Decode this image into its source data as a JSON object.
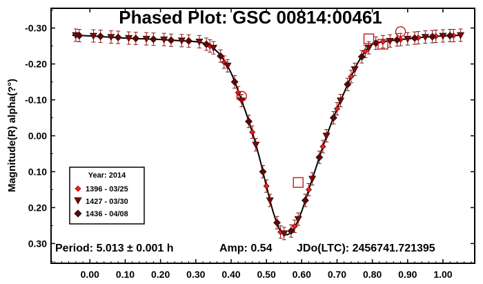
{
  "chart_data": {
    "type": "scatter",
    "title": "Phased Plot: GSC 00814:00461",
    "xlabel": "",
    "ylabel": "Magnitude(R) alpha(?°)",
    "xlim": [
      -0.11,
      1.09
    ],
    "ylim": [
      -0.355,
      0.355
    ],
    "y_inverted": true,
    "grid": false,
    "x_ticks": [
      "0.00",
      "0.10",
      "0.20",
      "0.30",
      "0.40",
      "0.50",
      "0.60",
      "0.70",
      "0.80",
      "0.90",
      "1.00"
    ],
    "y_ticks": [
      "-0.30",
      "-0.20",
      "-0.10",
      "0.00",
      "0.10",
      "0.20",
      "0.30"
    ],
    "x_tick_values": [
      0,
      0.1,
      0.2,
      0.3,
      0.4,
      0.5,
      0.6,
      0.7,
      0.8,
      0.9,
      1.0
    ],
    "y_tick_values": [
      -0.3,
      -0.2,
      -0.1,
      0,
      0.1,
      0.2,
      0.3
    ],
    "legend": {
      "title": "Year: 2014",
      "placement": "bottom-left",
      "entries": [
        {
          "label": "1396 - 03/25",
          "marker": "diamond-small"
        },
        {
          "label": "1427 - 03/30",
          "marker": "triangle-down"
        },
        {
          "label": "1436 - 04/08",
          "marker": "diamond"
        }
      ]
    },
    "annotations": {
      "period": "Period: 5.013 ± 0.001 h",
      "amp": "Amp: 0.54",
      "jdo": "JDo(LTC): 2456741.721395"
    },
    "fit_curve": {
      "x": [
        -0.05,
        0.0,
        0.05,
        0.1,
        0.15,
        0.2,
        0.25,
        0.3,
        0.33,
        0.36,
        0.38,
        0.4,
        0.42,
        0.44,
        0.46,
        0.48,
        0.5,
        0.52,
        0.54,
        0.56,
        0.58,
        0.6,
        0.62,
        0.64,
        0.66,
        0.68,
        0.7,
        0.72,
        0.74,
        0.76,
        0.78,
        0.8,
        0.83,
        0.86,
        0.9,
        0.95,
        1.0,
        1.05
      ],
      "y": [
        -0.28,
        -0.278,
        -0.275,
        -0.272,
        -0.27,
        -0.268,
        -0.265,
        -0.262,
        -0.255,
        -0.235,
        -0.21,
        -0.175,
        -0.125,
        -0.07,
        -0.01,
        0.06,
        0.14,
        0.215,
        0.265,
        0.275,
        0.255,
        0.21,
        0.15,
        0.09,
        0.03,
        -0.025,
        -0.075,
        -0.12,
        -0.165,
        -0.205,
        -0.235,
        -0.255,
        -0.262,
        -0.266,
        -0.27,
        -0.275,
        -0.278,
        -0.28
      ]
    },
    "series": [
      {
        "name": "1396 - 03/25",
        "marker": "diamond-small",
        "color": "#ff1a1a",
        "x": [
          0.34,
          0.38,
          0.42,
          0.46,
          0.5,
          0.54,
          0.58,
          0.62,
          0.66,
          0.7,
          0.74,
          0.78,
          0.83,
          0.88,
          0.93,
          0.98,
          1.03
        ],
        "y": [
          -0.25,
          -0.205,
          -0.12,
          -0.01,
          0.14,
          0.268,
          0.252,
          0.15,
          0.03,
          -0.075,
          -0.165,
          -0.235,
          -0.262,
          -0.268,
          -0.273,
          -0.277,
          -0.279
        ]
      },
      {
        "name": "1427 - 03/30",
        "marker": "triangle-down",
        "color": "#7a0a0a",
        "x": [
          -0.04,
          0.01,
          0.06,
          0.11,
          0.16,
          0.21,
          0.26,
          0.31,
          0.35,
          0.39,
          0.43,
          0.47,
          0.51,
          0.55,
          0.59,
          0.63,
          0.67,
          0.71,
          0.75,
          0.79,
          0.85,
          0.9,
          0.95,
          1.0,
          1.05
        ],
        "y": [
          -0.28,
          -0.278,
          -0.275,
          -0.272,
          -0.27,
          -0.268,
          -0.265,
          -0.262,
          -0.245,
          -0.195,
          -0.098,
          0.025,
          0.18,
          0.272,
          0.232,
          0.12,
          0.0,
          -0.098,
          -0.185,
          -0.245,
          -0.264,
          -0.27,
          -0.275,
          -0.278,
          -0.28
        ]
      },
      {
        "name": "1436 - 04/08",
        "marker": "diamond",
        "color": "#5a0808",
        "x": [
          -0.03,
          0.03,
          0.08,
          0.13,
          0.18,
          0.23,
          0.28,
          0.33,
          0.37,
          0.41,
          0.45,
          0.49,
          0.53,
          0.57,
          0.61,
          0.65,
          0.69,
          0.73,
          0.77,
          0.81,
          0.87,
          0.92,
          0.97,
          1.02
        ],
        "y": [
          -0.279,
          -0.277,
          -0.274,
          -0.271,
          -0.269,
          -0.266,
          -0.264,
          -0.255,
          -0.222,
          -0.15,
          -0.04,
          0.1,
          0.242,
          0.265,
          0.18,
          0.06,
          -0.05,
          -0.143,
          -0.22,
          -0.258,
          -0.267,
          -0.272,
          -0.276,
          -0.279
        ]
      }
    ],
    "outliers": [
      {
        "marker": "square-open",
        "x": 0.79,
        "y": -0.27
      },
      {
        "marker": "square-open",
        "x": 0.83,
        "y": -0.255
      },
      {
        "marker": "square-open",
        "x": 0.59,
        "y": 0.13
      },
      {
        "marker": "circle-open",
        "x": 0.43,
        "y": -0.11
      },
      {
        "marker": "circle-open",
        "x": 0.88,
        "y": -0.29
      }
    ]
  }
}
